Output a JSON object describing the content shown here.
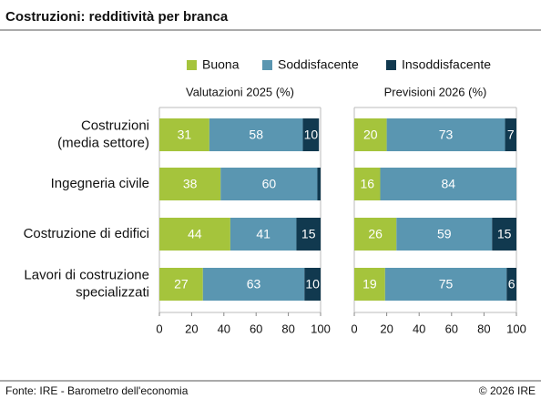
{
  "header": {
    "title": "Costruzioni: redditività per branca"
  },
  "chart_data": [
    {
      "type": "bar",
      "subtitle": "Valutazioni 2025 (%)",
      "categories": [
        [
          "Costruzioni",
          "(media settore)"
        ],
        [
          "Ingegneria civile"
        ],
        [
          "Costruzione di edifici"
        ],
        [
          "Lavori di costruzione",
          "specializzati"
        ]
      ],
      "series": [
        {
          "name": "Buona",
          "color": "#a5c43c",
          "values": [
            31,
            38,
            44,
            27
          ]
        },
        {
          "name": "Soddisfacente",
          "color": "#5a96b1",
          "values": [
            58,
            60,
            41,
            63
          ]
        },
        {
          "name": "Insoddisfacente",
          "color": "#11394f",
          "values": [
            10,
            2,
            15,
            10
          ]
        }
      ],
      "xlim": [
        0,
        100
      ],
      "xticks": [
        0,
        20,
        40,
        60,
        80,
        100
      ]
    },
    {
      "type": "bar",
      "subtitle": "Previsioni 2026 (%)",
      "series": [
        {
          "name": "Buona",
          "color": "#a5c43c",
          "values": [
            20,
            16,
            26,
            19
          ]
        },
        {
          "name": "Soddisfacente",
          "color": "#5a96b1",
          "values": [
            73,
            84,
            59,
            75
          ]
        },
        {
          "name": "Insoddisfacente",
          "color": "#11394f",
          "values": [
            7,
            0,
            15,
            6
          ]
        }
      ],
      "xlim": [
        0,
        100
      ],
      "xticks": [
        0,
        20,
        40,
        60,
        80,
        100
      ]
    }
  ],
  "footer": {
    "source": "Fonte: IRE - Barometro dell'economia",
    "copyright": "© 2026 IRE"
  }
}
